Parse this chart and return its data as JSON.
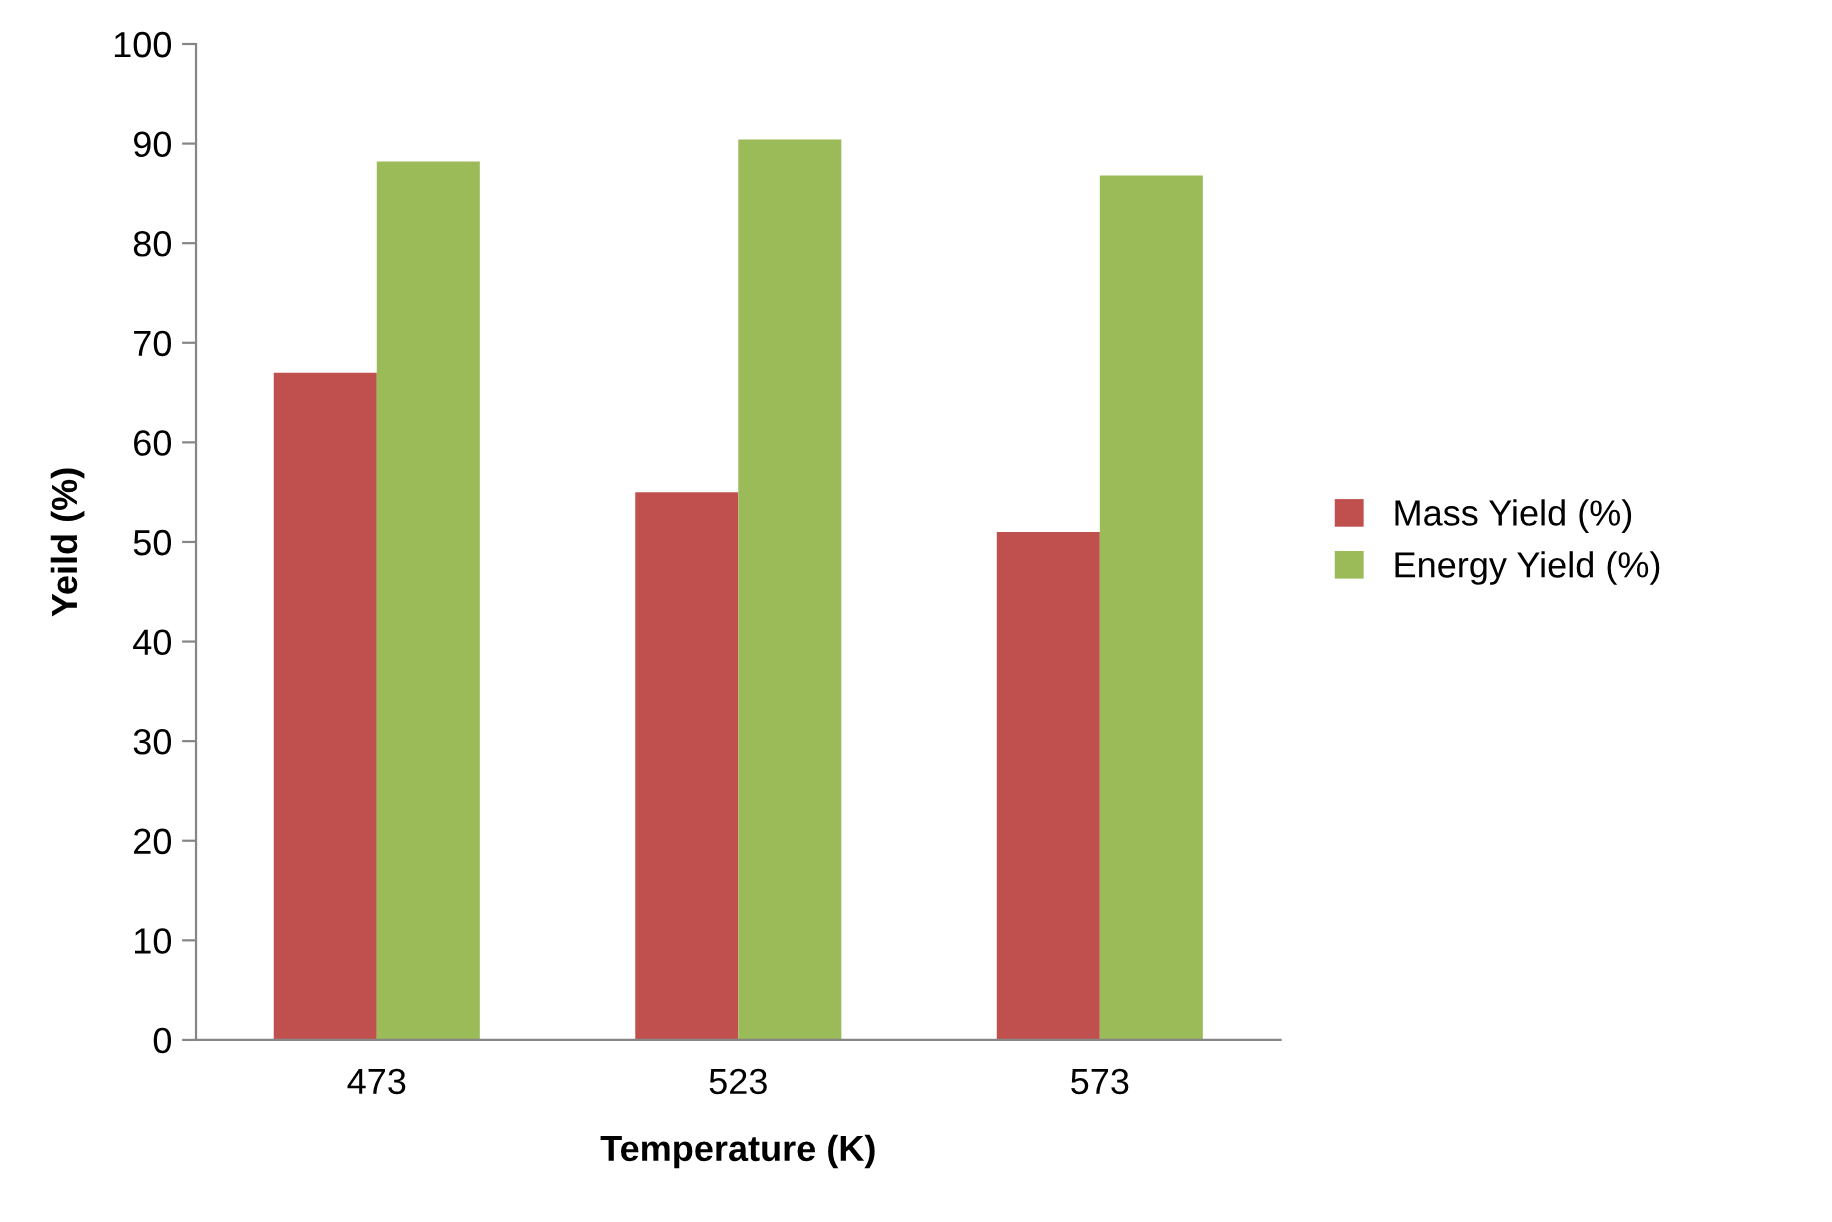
{
  "chart_data": {
    "type": "bar",
    "xlabel": "Temperature (K)",
    "ylabel": "Yeild (%)",
    "categories": [
      "473",
      "523",
      "573"
    ],
    "series": [
      {
        "name": "Mass Yield (%)",
        "color": "#c0504d",
        "values": [
          67,
          55,
          51
        ]
      },
      {
        "name": "Energy Yield (%)",
        "color": "#9bbb59",
        "values": [
          88.2,
          90.4,
          86.8
        ]
      }
    ],
    "ylim": [
      0,
      100
    ],
    "yticks": [
      0,
      10,
      20,
      30,
      40,
      50,
      60,
      70,
      80,
      90,
      100
    ],
    "grid": false,
    "legend": "right"
  }
}
